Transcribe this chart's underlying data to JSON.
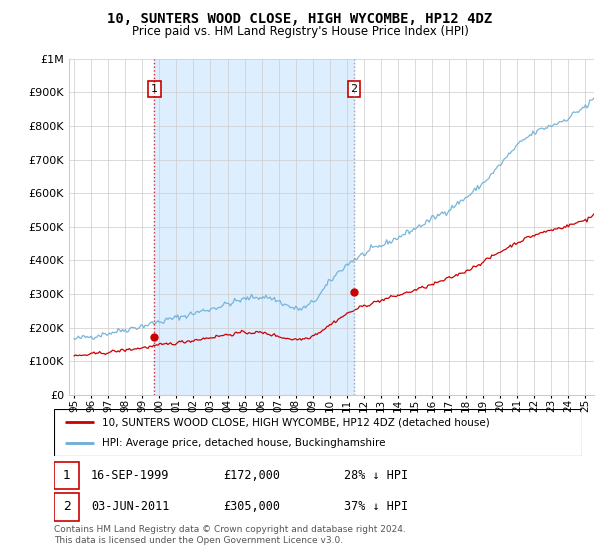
{
  "title": "10, SUNTERS WOOD CLOSE, HIGH WYCOMBE, HP12 4DZ",
  "subtitle": "Price paid vs. HM Land Registry's House Price Index (HPI)",
  "legend_line1": "10, SUNTERS WOOD CLOSE, HIGH WYCOMBE, HP12 4DZ (detached house)",
  "legend_line2": "HPI: Average price, detached house, Buckinghamshire",
  "footnote": "Contains HM Land Registry data © Crown copyright and database right 2024.\nThis data is licensed under the Open Government Licence v3.0.",
  "sale1_date": "16-SEP-1999",
  "sale1_price": "£172,000",
  "sale1_hpi": "28% ↓ HPI",
  "sale2_date": "03-JUN-2011",
  "sale2_price": "£305,000",
  "sale2_hpi": "37% ↓ HPI",
  "hpi_color": "#6baed6",
  "price_color": "#cc0000",
  "vline1_color": "#cc0000",
  "vline2_color": "#888888",
  "shade_color": "#ddeeff",
  "background_color": "#ffffff",
  "sale1_x": 1999.71,
  "sale1_y": 172000,
  "sale2_x": 2011.42,
  "sale2_y": 305000,
  "ylim": [
    0,
    1000000
  ],
  "xlim_min": 1994.7,
  "xlim_max": 2025.5,
  "yticks": [
    0,
    100000,
    200000,
    300000,
    400000,
    500000,
    600000,
    700000,
    800000,
    900000,
    1000000
  ],
  "xtick_years_short": [
    "95",
    "96",
    "97",
    "98",
    "99",
    "00",
    "01",
    "02",
    "03",
    "04",
    "05",
    "06",
    "07",
    "08",
    "09",
    "10",
    "11",
    "12",
    "13",
    "14",
    "15",
    "16",
    "17",
    "18",
    "19",
    "20",
    "21",
    "22",
    "23",
    "24",
    "25"
  ],
  "xtick_years_full": [
    1995,
    1996,
    1997,
    1998,
    1999,
    2000,
    2001,
    2002,
    2003,
    2004,
    2005,
    2006,
    2007,
    2008,
    2009,
    2010,
    2011,
    2012,
    2013,
    2014,
    2015,
    2016,
    2017,
    2018,
    2019,
    2020,
    2021,
    2022,
    2023,
    2024,
    2025
  ]
}
